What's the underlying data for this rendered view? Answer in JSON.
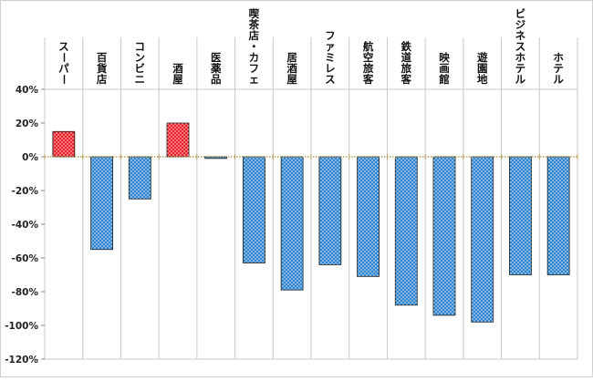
{
  "chart_data": {
    "type": "bar",
    "title": "",
    "xlabel": "",
    "ylabel": "",
    "categories": [
      "スーパー",
      "百貨店",
      "コンビニ",
      "酒屋",
      "医薬品",
      "喫茶店・カフェ",
      "居酒屋",
      "ファミレス",
      "航空旅客",
      "鉄道旅客",
      "映画館",
      "遊園地",
      "ビジネスホテル",
      "ホテル"
    ],
    "values": [
      15,
      -55,
      -25,
      20,
      -1,
      -63,
      -79,
      -64,
      -71,
      -88,
      -94,
      -98,
      -70,
      -70
    ],
    "ylim": [
      -120,
      40
    ],
    "ytick_step": 20,
    "ytick_labels": [
      "40%",
      "20%",
      "0%",
      "-20%",
      "-40%",
      "-60%",
      "-80%",
      "-100%",
      "-120%"
    ],
    "grid": "vertical",
    "legend": "none",
    "colors": {
      "positive": "#e8202a",
      "negative": "#2f86cf",
      "dot": "#ffffff",
      "grid": "#c8c8c8",
      "axis": "#8a8a8a",
      "zero_line_dots": "#b8a060"
    }
  }
}
